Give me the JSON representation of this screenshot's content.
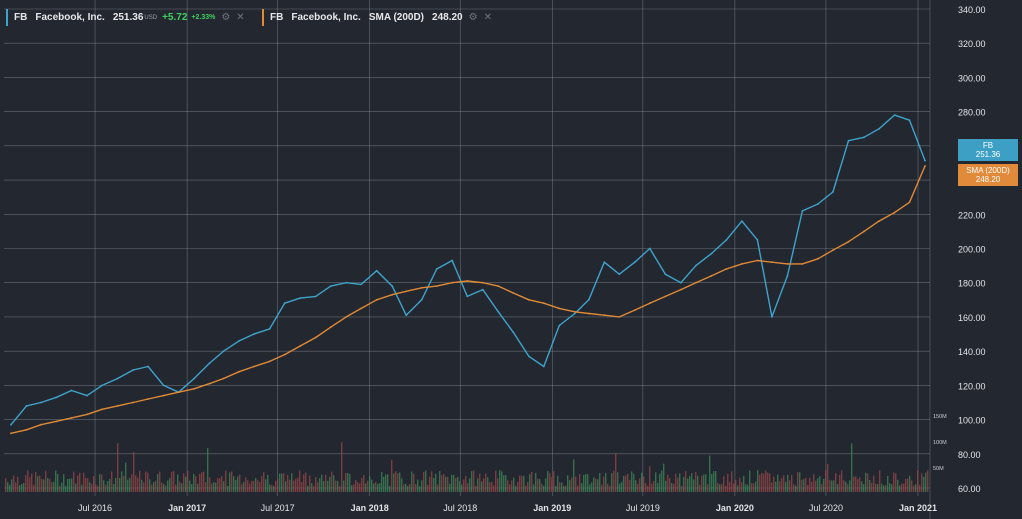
{
  "legend": {
    "fb": {
      "ticker": "FB",
      "name": "Facebook, Inc.",
      "price": "251.36",
      "currency": "USD",
      "change": "+5.72",
      "change_pct": "+2.33%"
    },
    "sma": {
      "ticker": "FB",
      "name": "Facebook, Inc.",
      "indicator": "SMA (200D)",
      "value": "248.20"
    },
    "icons": [
      "settings-icon",
      "close-icon"
    ]
  },
  "price_tags": {
    "fb": {
      "label": "FB",
      "value": "251.36"
    },
    "sma": {
      "label": "SMA (200D)",
      "value": "248.20"
    }
  },
  "colors": {
    "background": "#232730",
    "grid": "#9ea3ab",
    "price_line": "#3fa3cc",
    "sma_line": "#e08a35",
    "volume_up": "#3f8f5a",
    "volume_down": "#a04848"
  },
  "chart_data": {
    "type": "line",
    "x": [
      "2016-01",
      "2016-02",
      "2016-03",
      "2016-04",
      "2016-05",
      "2016-06",
      "2016-07",
      "2016-08",
      "2016-09",
      "2016-10",
      "2016-11",
      "2016-12",
      "2017-01",
      "2017-02",
      "2017-03",
      "2017-04",
      "2017-05",
      "2017-06",
      "2017-07",
      "2017-08",
      "2017-09",
      "2017-10",
      "2017-11",
      "2017-12",
      "2018-01",
      "2018-02",
      "2018-03",
      "2018-04",
      "2018-05",
      "2018-06",
      "2018-07",
      "2018-08",
      "2018-09",
      "2018-10",
      "2018-11",
      "2018-12",
      "2019-01",
      "2019-02",
      "2019-03",
      "2019-04",
      "2019-05",
      "2019-06",
      "2019-07",
      "2019-08",
      "2019-09",
      "2019-10",
      "2019-11",
      "2019-12",
      "2020-01",
      "2020-02",
      "2020-03",
      "2020-04",
      "2020-05",
      "2020-06",
      "2020-07",
      "2020-08",
      "2020-09",
      "2020-10",
      "2020-11",
      "2020-12",
      "2021-01"
    ],
    "series": [
      {
        "name": "FB",
        "values": [
          97,
          108,
          110,
          113,
          117,
          114,
          120,
          124,
          129,
          131,
          120,
          116,
          124,
          133,
          140,
          146,
          150,
          153,
          168,
          171,
          172,
          178,
          180,
          179,
          187,
          178,
          161,
          170,
          188,
          193,
          172,
          176,
          163,
          151,
          137,
          131,
          155,
          162,
          170,
          192,
          185,
          192,
          200,
          185,
          180,
          190,
          197,
          205,
          216,
          205,
          160,
          184,
          222,
          226,
          233,
          263,
          265,
          270,
          278,
          275,
          251.36
        ]
      },
      {
        "name": "SMA (200D)",
        "values": [
          92,
          94,
          97,
          99,
          101,
          103,
          106,
          108,
          110,
          112,
          114,
          116,
          118,
          121,
          124,
          128,
          131,
          134,
          138,
          143,
          148,
          154,
          160,
          165,
          170,
          173,
          175,
          177,
          178,
          180,
          181,
          180,
          178,
          174,
          170,
          168,
          165,
          163,
          162,
          161,
          160,
          164,
          168,
          172,
          176,
          180,
          184,
          188,
          191,
          193,
          192,
          191,
          191,
          194,
          199,
          204,
          210,
          216,
          221,
          227,
          248.2
        ]
      }
    ],
    "y_ticks": [
      "340.00",
      "320.00",
      "300.00",
      "280.00",
      "260.00",
      "240.00",
      "220.00",
      "200.00",
      "180.00",
      "160.00",
      "140.00",
      "120.00",
      "100.00",
      "80.00",
      "60.00"
    ],
    "x_ticks": [
      "Jul 2016",
      "Jan 2017",
      "Jul 2017",
      "Jan 2018",
      "Jul 2018",
      "Jan 2019",
      "Jul 2019",
      "Jan 2020",
      "Jul 2020",
      "Jan 2021"
    ],
    "volume_ticks": [
      "150M",
      "100M",
      "50M"
    ],
    "ylim": [
      60,
      340
    ],
    "grid": true,
    "legend_position": "top-left"
  }
}
